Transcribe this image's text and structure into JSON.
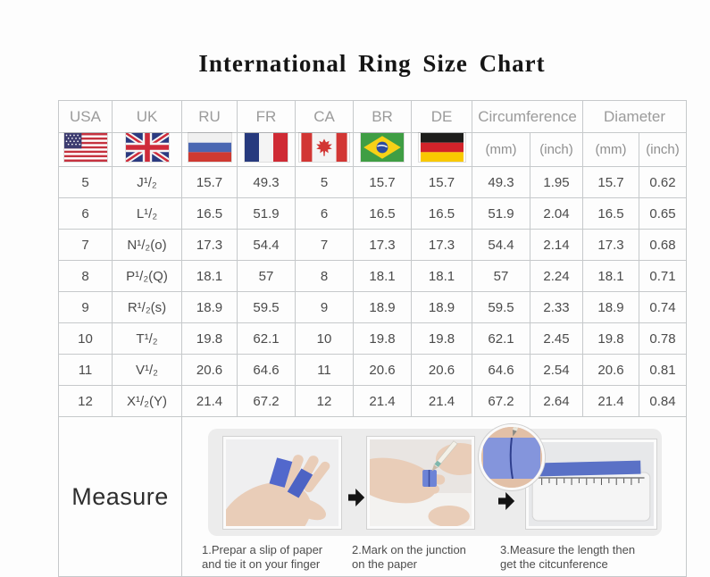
{
  "chart_data": {
    "type": "table",
    "title": "International Ring Size Chart",
    "country_columns": [
      "USA",
      "UK",
      "RU",
      "FR",
      "CA",
      "BR",
      "DE"
    ],
    "group_columns": [
      {
        "label": "Circumference",
        "units": [
          "(mm)",
          "(inch)"
        ]
      },
      {
        "label": "Diameter",
        "units": [
          "(mm)",
          "(inch)"
        ]
      }
    ],
    "columns_flat": [
      "USA",
      "UK",
      "RU",
      "FR",
      "CA",
      "BR",
      "DE",
      "Circumference (mm)",
      "Circumference (inch)",
      "Diameter (mm)",
      "Diameter (inch)"
    ],
    "rows": [
      [
        "5",
        "J¹/₂",
        "15.7",
        "49.3",
        "5",
        "15.7",
        "15.7",
        "49.3",
        "1.95",
        "15.7",
        "0.62"
      ],
      [
        "6",
        "L¹/₂",
        "16.5",
        "51.9",
        "6",
        "16.5",
        "16.5",
        "51.9",
        "2.04",
        "16.5",
        "0.65"
      ],
      [
        "7",
        "N¹/₂(o)",
        "17.3",
        "54.4",
        "7",
        "17.3",
        "17.3",
        "54.4",
        "2.14",
        "17.3",
        "0.68"
      ],
      [
        "8",
        "P¹/₂(Q)",
        "18.1",
        "57",
        "8",
        "18.1",
        "18.1",
        "57",
        "2.24",
        "18.1",
        "0.71"
      ],
      [
        "9",
        "R¹/₂(s)",
        "18.9",
        "59.5",
        "9",
        "18.9",
        "18.9",
        "59.5",
        "2.33",
        "18.9",
        "0.74"
      ],
      [
        "10",
        "T¹/₂",
        "19.8",
        "62.1",
        "10",
        "19.8",
        "19.8",
        "62.1",
        "2.45",
        "19.8",
        "0.78"
      ],
      [
        "11",
        "V¹/₂",
        "20.6",
        "64.6",
        "11",
        "20.6",
        "20.6",
        "64.6",
        "2.54",
        "20.6",
        "0.81"
      ],
      [
        "12",
        "X¹/₂(Y)",
        "21.4",
        "67.2",
        "12",
        "21.4",
        "21.4",
        "67.2",
        "2.64",
        "21.4",
        "0.84"
      ]
    ]
  },
  "flag_icons": [
    "usa-flag-icon",
    "uk-flag-icon",
    "ru-flag-icon",
    "fr-flag-icon",
    "ca-flag-icon",
    "br-flag-icon",
    "de-flag-icon"
  ],
  "measure": {
    "label": "Measure",
    "arrow_icon": "right-arrow-icon",
    "magnifier_icon": "magnified-paper-band-photo",
    "steps": [
      {
        "photo": "hand-with-paper-strips-photo",
        "lines": [
          "1.Prepar a slip of paper",
          "and tie it on your finger"
        ]
      },
      {
        "photo": "marking-junction-photo",
        "lines": [
          "2.Mark on the junction",
          "on the paper"
        ]
      },
      {
        "photo": "ruler-measurement-photo",
        "lines": [
          "3.Measure the length then",
          "get the citcunference"
        ]
      }
    ]
  },
  "colors": {
    "table_border": "#c6c9cb",
    "header_text": "#9b9b9b",
    "cell_text": "#4b4b4b",
    "panel_background": "#ececec",
    "paper_strip_blue": "#5a71c6",
    "skin_tone": "#ecd2bf",
    "title_text": "#151515"
  }
}
